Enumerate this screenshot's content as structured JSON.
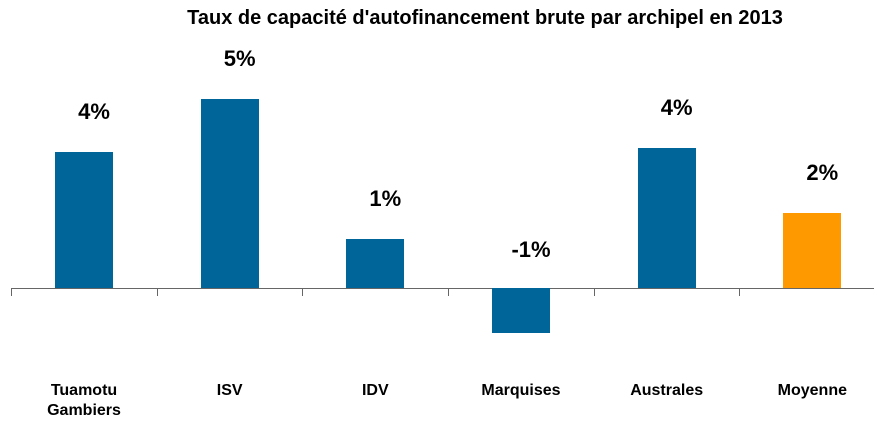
{
  "chart_data": {
    "type": "bar",
    "title": "Taux de capacité d'autofinancement brute par archipel en 2013",
    "categories": [
      "Tuamotu Gambiers",
      "ISV",
      "IDV",
      "Marquises",
      "Australes",
      "Moyenne"
    ],
    "values": [
      3.6,
      5.0,
      1.3,
      -1.2,
      3.7,
      2.0
    ],
    "value_labels": [
      "4%",
      "5%",
      "1%",
      "-1%",
      "4%",
      "2%"
    ],
    "colors": [
      "#00669a",
      "#00669a",
      "#00669a",
      "#00669a",
      "#00669a",
      "#ff9900"
    ]
  }
}
